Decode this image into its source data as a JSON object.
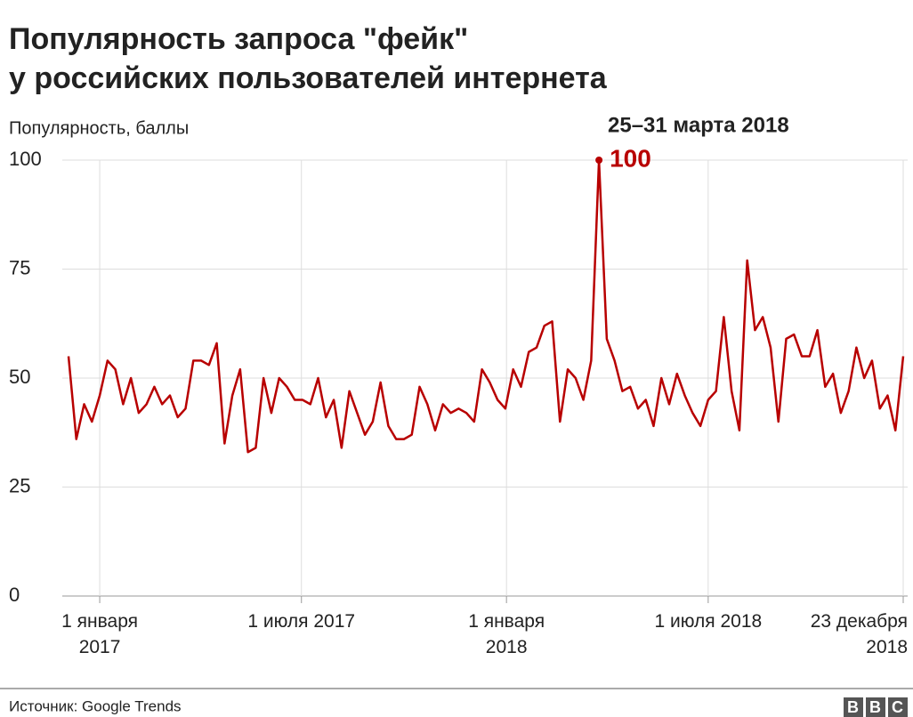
{
  "chart_data": {
    "type": "line",
    "title": "Популярность запроса \"фейк\"",
    "subtitle": "у российских пользователей интернета",
    "y_label": "Популярность, баллы",
    "annotation": "25–31 марта 2018",
    "source": "Источник: Google Trends",
    "logo": "BBC",
    "x": [
      "2016-12-04",
      "2016-12-11",
      "2016-12-18",
      "2016-12-25",
      "2017-01-01",
      "2017-01-08",
      "2017-01-15",
      "2017-01-22",
      "2017-01-29",
      "2017-02-05",
      "2017-02-12",
      "2017-02-19",
      "2017-02-26",
      "2017-03-05",
      "2017-03-12",
      "2017-03-19",
      "2017-03-26",
      "2017-04-02",
      "2017-04-09",
      "2017-04-16",
      "2017-04-23",
      "2017-04-30",
      "2017-05-07",
      "2017-05-14",
      "2017-05-21",
      "2017-05-28",
      "2017-06-04",
      "2017-06-11",
      "2017-06-18",
      "2017-06-25",
      "2017-07-02",
      "2017-07-09",
      "2017-07-16",
      "2017-07-23",
      "2017-07-30",
      "2017-08-06",
      "2017-08-13",
      "2017-08-20",
      "2017-08-27",
      "2017-09-03",
      "2017-09-10",
      "2017-09-17",
      "2017-09-24",
      "2017-10-01",
      "2017-10-08",
      "2017-10-15",
      "2017-10-22",
      "2017-10-29",
      "2017-11-05",
      "2017-11-12",
      "2017-11-19",
      "2017-11-26",
      "2017-12-03",
      "2017-12-10",
      "2017-12-17",
      "2017-12-24",
      "2017-12-31",
      "2018-01-07",
      "2018-01-14",
      "2018-01-21",
      "2018-01-28",
      "2018-02-04",
      "2018-02-11",
      "2018-02-18",
      "2018-02-25",
      "2018-03-04",
      "2018-03-11",
      "2018-03-18",
      "2018-03-25",
      "2018-04-01",
      "2018-04-08",
      "2018-04-15",
      "2018-04-22",
      "2018-04-29",
      "2018-05-06",
      "2018-05-13",
      "2018-05-20",
      "2018-05-27",
      "2018-06-03",
      "2018-06-10",
      "2018-06-17",
      "2018-06-24",
      "2018-07-01",
      "2018-07-08",
      "2018-07-15",
      "2018-07-22",
      "2018-07-29",
      "2018-08-05",
      "2018-08-12",
      "2018-08-19",
      "2018-08-26",
      "2018-09-02",
      "2018-09-09",
      "2018-09-16",
      "2018-09-23",
      "2018-09-30",
      "2018-10-07",
      "2018-10-14",
      "2018-10-21",
      "2018-10-28",
      "2018-11-04",
      "2018-11-11",
      "2018-11-18",
      "2018-11-25",
      "2018-12-02",
      "2018-12-09",
      "2018-12-16",
      "2018-12-23"
    ],
    "series": [
      {
        "name": "фейк",
        "color": "#b80000",
        "values": [
          55,
          36,
          44,
          40,
          46,
          54,
          52,
          44,
          50,
          42,
          44,
          48,
          44,
          46,
          41,
          43,
          54,
          54,
          53,
          58,
          35,
          46,
          52,
          33,
          34,
          50,
          42,
          50,
          48,
          45,
          45,
          44,
          50,
          41,
          45,
          34,
          47,
          42,
          37,
          40,
          49,
          39,
          36,
          36,
          37,
          48,
          44,
          38,
          44,
          42,
          43,
          42,
          40,
          52,
          49,
          45,
          43,
          52,
          48,
          56,
          57,
          62,
          63,
          40,
          52,
          50,
          45,
          54,
          100,
          59,
          54,
          47,
          48,
          43,
          45,
          39,
          50,
          44,
          51,
          46,
          42,
          39,
          45,
          47,
          64,
          47,
          38,
          77,
          61,
          64,
          57,
          40,
          59,
          60,
          55,
          55,
          61,
          48,
          51,
          42,
          47,
          57,
          50,
          54,
          43,
          46,
          38,
          55
        ]
      }
    ],
    "xlim": [
      "2016-12-04",
      "2018-12-23"
    ],
    "xticks": [
      {
        "value": "2017-01-01",
        "label": "1 января 2017"
      },
      {
        "value": "2017-07-01",
        "label": "1 июля 2017"
      },
      {
        "value": "2018-01-01",
        "label": "1 января 2018"
      },
      {
        "value": "2018-07-01",
        "label": "1 июля 2018"
      },
      {
        "value": "2018-12-23",
        "label": "23 декабря 2018"
      }
    ],
    "ylim": [
      0,
      100
    ],
    "yticks": [
      0,
      25,
      50,
      75,
      100
    ],
    "grid": true
  }
}
